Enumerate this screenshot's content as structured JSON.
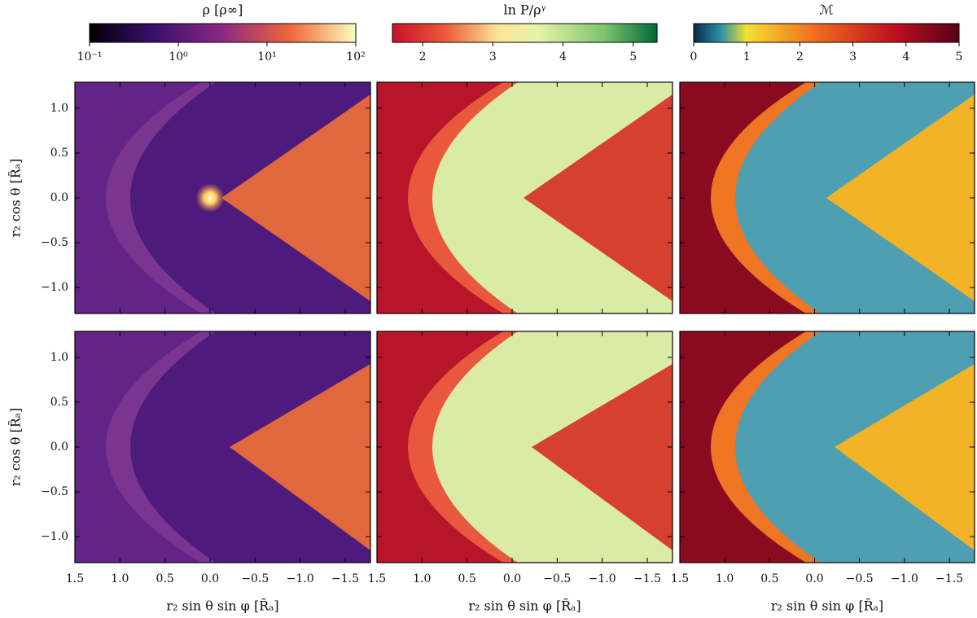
{
  "chart_data": {
    "type": "heatmap",
    "colorbars": [
      {
        "label": "ρ [ρ∞]",
        "log": true,
        "lim": [
          0.1,
          100
        ],
        "ticks": [
          {
            "value": 0.1,
            "label": "10⁻¹"
          },
          {
            "value": 1,
            "label": "10⁰"
          },
          {
            "value": 10,
            "label": "10¹"
          },
          {
            "value": 100,
            "label": "10²"
          }
        ]
      },
      {
        "label": "ln P/ρᵞ",
        "log": false,
        "lim": [
          1.57,
          5.34
        ],
        "ticks": [
          2,
          3,
          4,
          5
        ]
      },
      {
        "label": "ℳ",
        "log": false,
        "lim": [
          0,
          5
        ],
        "ticks": [
          0,
          1,
          2,
          3,
          4,
          5
        ]
      }
    ],
    "xlabel": "r₂ sin θ sin φ [R̃ₐ]",
    "ylabel": "r₂ cos θ [R̃ₐ]",
    "xlim": [
      1.5,
      -1.78
    ],
    "ylim": [
      -1.29,
      1.29
    ],
    "xticks": [
      1.5,
      {
        "value": 1,
        "label": "1.0"
      },
      0.5,
      {
        "value": 0,
        "label": "0.0"
      },
      {
        "value": -0.5,
        "label": "−0.5"
      },
      {
        "value": -1,
        "label": "−1.0"
      },
      {
        "value": -1.5,
        "label": "−1.5"
      }
    ],
    "yticks": [
      {
        "value": -1,
        "label": "−1.0"
      },
      {
        "value": -0.5,
        "label": "−0.5"
      },
      {
        "value": 0,
        "label": "0.0"
      },
      0.5,
      {
        "value": 1,
        "label": "1.0"
      }
    ]
  }
}
